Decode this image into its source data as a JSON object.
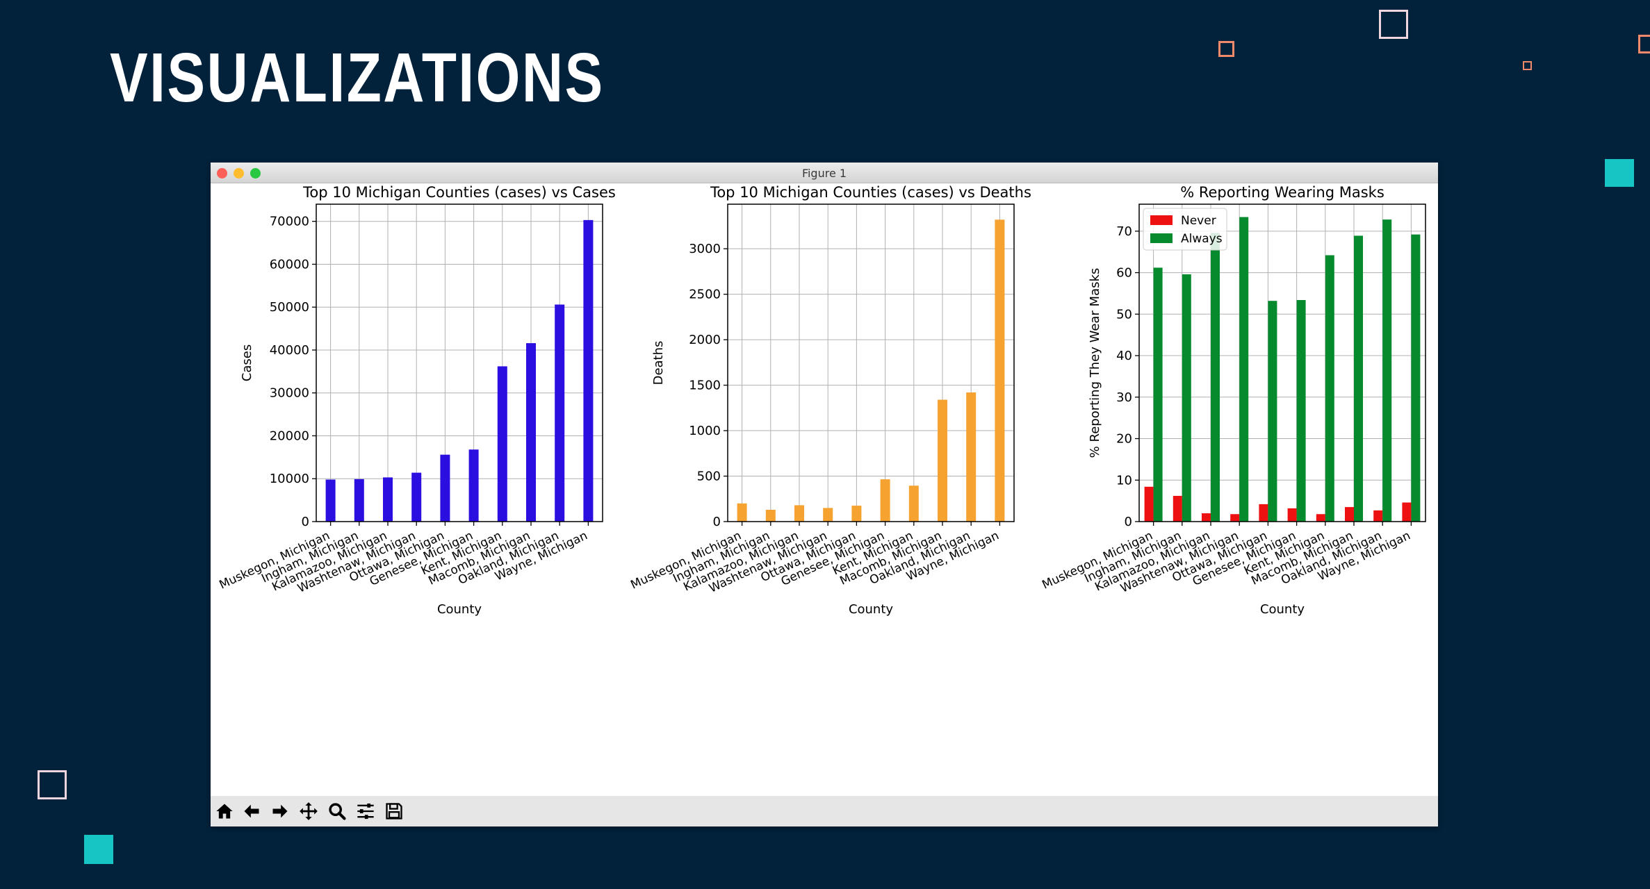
{
  "slide": {
    "title": "VISUALIZATIONS"
  },
  "window": {
    "title": "Figure 1"
  },
  "colors": {
    "background": "#02223b",
    "teal": "#17c6c4",
    "orange_outline": "#f08a6a",
    "cases_bar": "#2a0fe0",
    "deaths_bar": "#f5a230",
    "never_bar": "#ee1111",
    "always_bar": "#068a2e"
  },
  "toolbar": {
    "buttons": [
      "home-icon",
      "back-arrow-icon",
      "forward-arrow-icon",
      "pan-icon",
      "zoom-icon",
      "configure-subplots-icon",
      "save-icon"
    ]
  },
  "chart_data": [
    {
      "type": "bar",
      "title": "Top 10 Michigan Counties (cases) vs Cases",
      "xlabel": "County",
      "ylabel": "Cases",
      "categories": [
        "Muskegon, Michigan",
        "Ingham, Michigan",
        "Kalamazoo, Michigan",
        "Washtenaw, Michigan",
        "Ottawa, Michigan",
        "Genesee, Michigan",
        "Kent, Michigan",
        "Macomb, Michigan",
        "Oakland, Michigan",
        "Wayne, Michigan"
      ],
      "values": [
        9800,
        9900,
        10300,
        11400,
        15600,
        16800,
        36200,
        41600,
        50600,
        70300
      ],
      "ylim": [
        0,
        74000
      ],
      "yticks": [
        0,
        10000,
        20000,
        30000,
        40000,
        50000,
        60000,
        70000
      ],
      "grid": true,
      "color": "#2a0fe0"
    },
    {
      "type": "bar",
      "title": "Top 10 Michigan Counties (cases) vs Deaths",
      "xlabel": "County",
      "ylabel": "Deaths",
      "categories": [
        "Muskegon, Michigan",
        "Ingham, Michigan",
        "Kalamazoo, Michigan",
        "Washtenaw, Michigan",
        "Ottawa, Michigan",
        "Genesee, Michigan",
        "Kent, Michigan",
        "Macomb, Michigan",
        "Oakland, Michigan",
        "Wayne, Michigan"
      ],
      "values": [
        200,
        130,
        180,
        150,
        175,
        465,
        395,
        1340,
        1420,
        3320
      ],
      "ylim": [
        0,
        3490
      ],
      "yticks": [
        0,
        500,
        1000,
        1500,
        2000,
        2500,
        3000
      ],
      "grid": true,
      "color": "#f5a230"
    },
    {
      "type": "bar",
      "title": "% Reporting Wearing Masks",
      "xlabel": "County",
      "ylabel": "% Reporting They Wear Masks",
      "categories": [
        "Muskegon, Michigan",
        "Ingham, Michigan",
        "Kalamazoo, Michigan",
        "Washtenaw, Michigan",
        "Ottawa, Michigan",
        "Genesee, Michigan",
        "Kent, Michigan",
        "Macomb, Michigan",
        "Oakland, Michigan",
        "Wayne, Michigan"
      ],
      "series": [
        {
          "name": "Never",
          "values": [
            8.4,
            6.2,
            2.0,
            1.8,
            4.2,
            3.2,
            1.8,
            3.5,
            2.7,
            4.6
          ],
          "color": "#ee1111"
        },
        {
          "name": "Always",
          "values": [
            61.2,
            59.6,
            69.6,
            73.4,
            53.2,
            53.4,
            64.2,
            68.9,
            72.8,
            69.2
          ],
          "color": "#068a2e"
        }
      ],
      "ylim": [
        0,
        76.5
      ],
      "yticks": [
        0,
        10,
        20,
        30,
        40,
        50,
        60,
        70
      ],
      "legend": "top-left",
      "grid": true
    }
  ]
}
